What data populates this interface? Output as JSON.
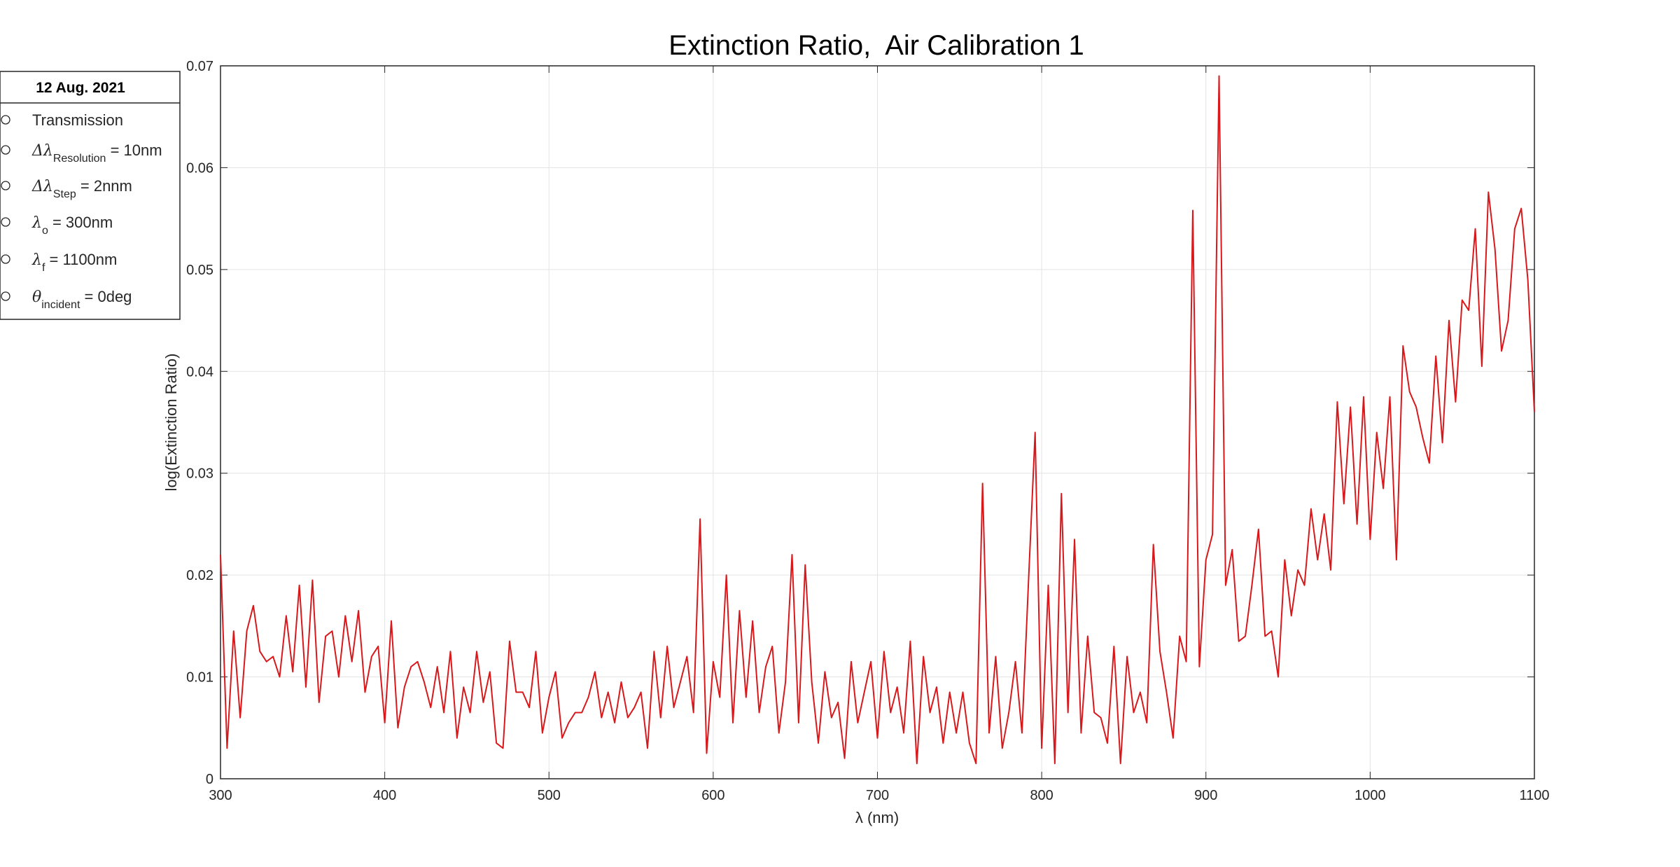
{
  "chart_data": {
    "type": "line",
    "title": "Extinction Ratio,  Air Calibration 1",
    "x_label": "λ (nm)",
    "y_label": "log(Extinction Ratio)",
    "xlim": [
      300,
      1100
    ],
    "xticks": [
      300,
      400,
      500,
      600,
      700,
      800,
      900,
      1000,
      1100
    ],
    "ylim": [
      0,
      0.07
    ],
    "yticks": [
      0,
      0.01,
      0.02,
      0.03,
      0.04,
      0.05,
      0.06,
      0.07
    ],
    "grid": true,
    "x": [
      300,
      304,
      308,
      312,
      316,
      320,
      324,
      328,
      332,
      336,
      340,
      344,
      348,
      352,
      356,
      360,
      364,
      368,
      372,
      376,
      380,
      384,
      388,
      392,
      396,
      400,
      404,
      408,
      412,
      416,
      420,
      424,
      428,
      432,
      436,
      440,
      444,
      448,
      452,
      456,
      460,
      464,
      468,
      472,
      476,
      480,
      484,
      488,
      492,
      496,
      500,
      504,
      508,
      512,
      516,
      520,
      524,
      528,
      532,
      536,
      540,
      544,
      548,
      552,
      556,
      560,
      564,
      568,
      572,
      576,
      580,
      584,
      588,
      592,
      596,
      600,
      604,
      608,
      612,
      616,
      620,
      624,
      628,
      632,
      636,
      640,
      644,
      648,
      652,
      656,
      660,
      664,
      668,
      672,
      676,
      680,
      684,
      688,
      692,
      696,
      700,
      704,
      708,
      712,
      716,
      720,
      724,
      728,
      732,
      736,
      740,
      744,
      748,
      752,
      756,
      760,
      764,
      768,
      772,
      776,
      780,
      784,
      788,
      792,
      796,
      800,
      804,
      808,
      812,
      816,
      820,
      824,
      828,
      832,
      836,
      840,
      844,
      848,
      852,
      856,
      860,
      864,
      868,
      872,
      876,
      880,
      884,
      888,
      892,
      896,
      900,
      904,
      908,
      912,
      916,
      920,
      924,
      928,
      932,
      936,
      940,
      944,
      948,
      952,
      956,
      960,
      964,
      968,
      972,
      976,
      980,
      984,
      988,
      992,
      996,
      1000,
      1004,
      1008,
      1012,
      1016,
      1020,
      1024,
      1028,
      1032,
      1036,
      1040,
      1044,
      1048,
      1052,
      1056,
      1060,
      1064,
      1068,
      1072,
      1076,
      1080,
      1084,
      1088,
      1092,
      1096,
      1100
    ],
    "series": [
      {
        "name": "Extinction Ratio",
        "color": "#d7191c",
        "values": [
          0.022,
          0.003,
          0.0145,
          0.006,
          0.0145,
          0.017,
          0.0125,
          0.0115,
          0.012,
          0.01,
          0.016,
          0.0105,
          0.019,
          0.009,
          0.0195,
          0.0075,
          0.014,
          0.0145,
          0.01,
          0.016,
          0.0115,
          0.0165,
          0.0085,
          0.012,
          0.013,
          0.0055,
          0.0155,
          0.005,
          0.009,
          0.011,
          0.0115,
          0.0095,
          0.007,
          0.011,
          0.0065,
          0.0125,
          0.004,
          0.009,
          0.0065,
          0.0125,
          0.0075,
          0.0105,
          0.0035,
          0.003,
          0.0135,
          0.0085,
          0.0085,
          0.007,
          0.0125,
          0.0045,
          0.008,
          0.0105,
          0.004,
          0.0055,
          0.0065,
          0.0065,
          0.008,
          0.0105,
          0.006,
          0.0085,
          0.0055,
          0.0095,
          0.006,
          0.007,
          0.0085,
          0.003,
          0.0125,
          0.006,
          0.013,
          0.007,
          0.0095,
          0.012,
          0.0065,
          0.0255,
          0.0025,
          0.0115,
          0.008,
          0.02,
          0.0055,
          0.0165,
          0.008,
          0.0155,
          0.0065,
          0.011,
          0.013,
          0.0045,
          0.0095,
          0.022,
          0.0055,
          0.021,
          0.0095,
          0.0035,
          0.0105,
          0.006,
          0.0075,
          0.002,
          0.0115,
          0.0055,
          0.0085,
          0.0115,
          0.004,
          0.0125,
          0.0065,
          0.009,
          0.0045,
          0.0135,
          0.0015,
          0.012,
          0.0065,
          0.009,
          0.0035,
          0.0085,
          0.0045,
          0.0085,
          0.0035,
          0.0015,
          0.029,
          0.0045,
          0.012,
          0.003,
          0.0065,
          0.0115,
          0.0045,
          0.0195,
          0.034,
          0.003,
          0.019,
          0.0015,
          0.028,
          0.0065,
          0.0235,
          0.0045,
          0.014,
          0.0065,
          0.006,
          0.0035,
          0.013,
          0.0015,
          0.012,
          0.0065,
          0.0085,
          0.0055,
          0.023,
          0.0125,
          0.0085,
          0.004,
          0.014,
          0.0115,
          0.0558,
          0.011,
          0.0215,
          0.024,
          0.069,
          0.019,
          0.0225,
          0.0135,
          0.014,
          0.019,
          0.0245,
          0.014,
          0.0145,
          0.01,
          0.0215,
          0.016,
          0.0205,
          0.019,
          0.0265,
          0.0215,
          0.026,
          0.0205,
          0.037,
          0.027,
          0.0365,
          0.025,
          0.0375,
          0.0235,
          0.034,
          0.0285,
          0.0375,
          0.0215,
          0.0425,
          0.038,
          0.0365,
          0.0335,
          0.031,
          0.0415,
          0.033,
          0.045,
          0.037,
          0.047,
          0.046,
          0.054,
          0.0405,
          0.0576,
          0.052,
          0.042,
          0.045,
          0.054,
          0.056,
          0.049,
          0.036
        ]
      }
    ],
    "legend": {
      "title": "12 Aug. 2021",
      "items": [
        {
          "text": "Transmission"
        },
        {
          "symbol": "Δλ",
          "subscript": "Resolution",
          "text": " = 10nm"
        },
        {
          "symbol": "Δλ",
          "subscript": "Step",
          "text": " = 2nnm"
        },
        {
          "symbol": "λ",
          "subscript": "o",
          "text": " = 300nm"
        },
        {
          "symbol": "λ",
          "subscript": "f",
          "text": " = 1100nm"
        },
        {
          "symbol": "θ",
          "subscript": "incident",
          "text": " = 0deg"
        }
      ]
    }
  }
}
